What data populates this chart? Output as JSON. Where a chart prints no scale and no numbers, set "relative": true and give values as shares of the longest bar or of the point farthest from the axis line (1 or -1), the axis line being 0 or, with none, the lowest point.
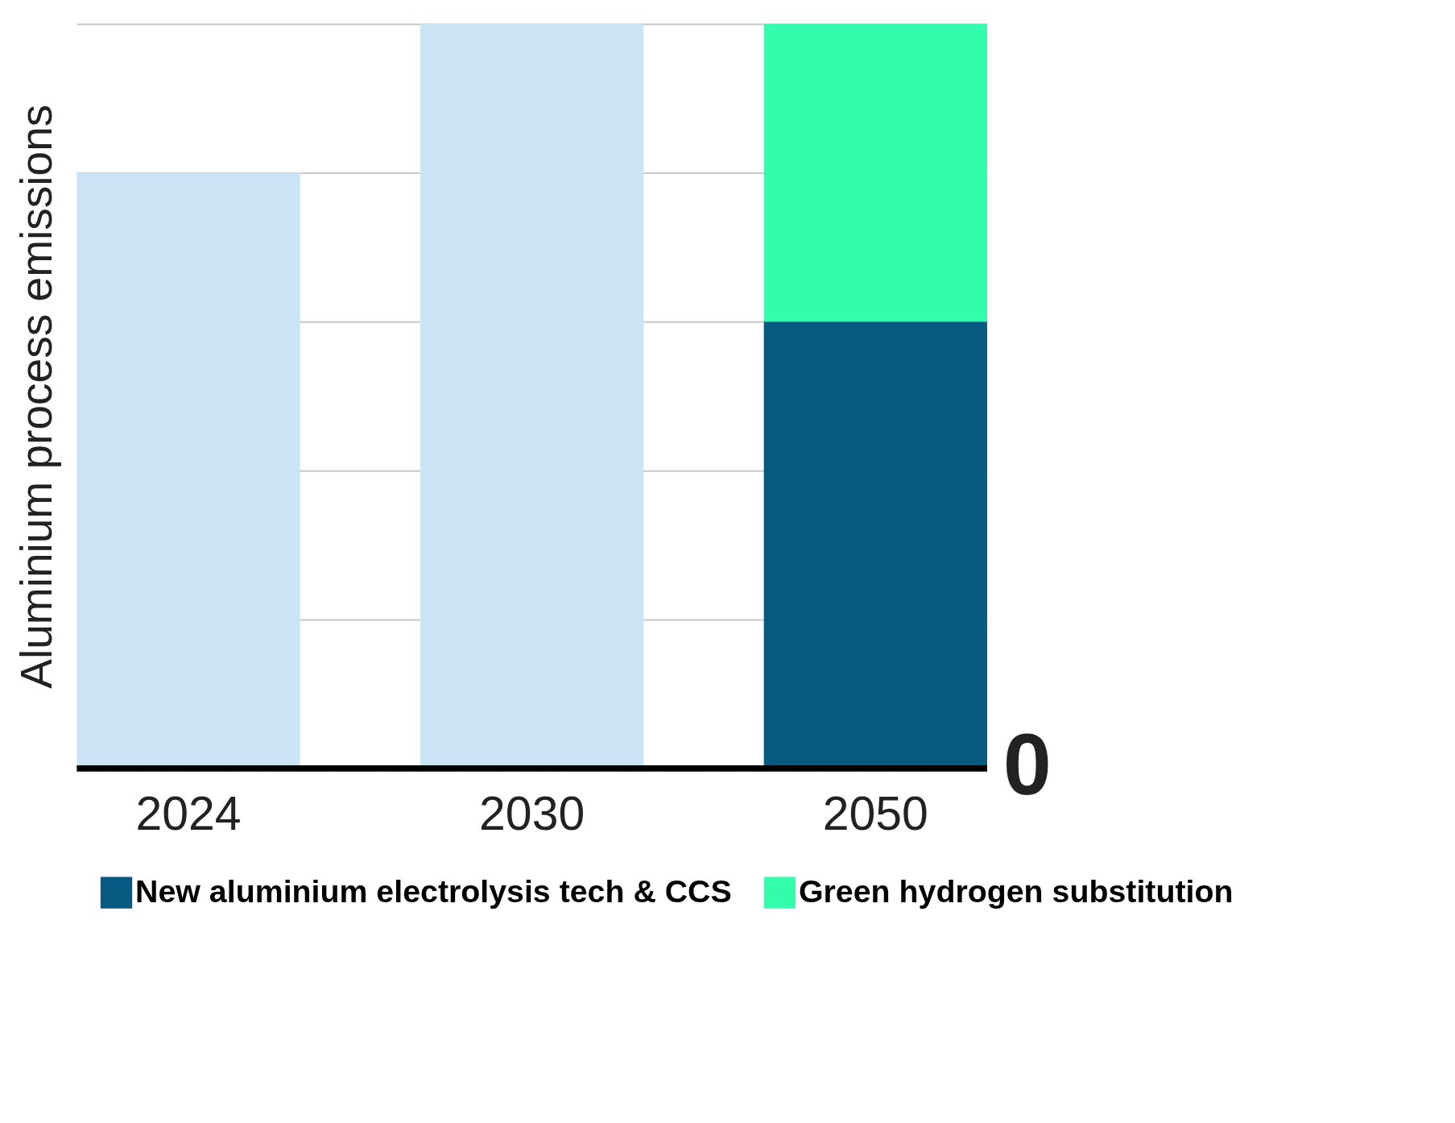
{
  "chart_data": {
    "type": "bar",
    "relative": true,
    "stacked": true,
    "ylabel": "Aluminium process emissions",
    "categories": [
      "2024",
      "2030",
      "2050"
    ],
    "series": [
      {
        "color": "#c8e4f5",
        "values": [
          0.8,
          1.0,
          null
        ]
      },
      {
        "name": "New aluminium electrolysis tech & CCS",
        "color": "#065a82",
        "values": [
          null,
          null,
          0.6
        ]
      },
      {
        "name": "Green hydrogen substitution",
        "color": "#33fcad",
        "values": [
          null,
          null,
          0.4
        ]
      }
    ],
    "ref_lines": [
      {
        "axis": "y",
        "value": 0,
        "label": "0",
        "color": "#000000"
      }
    ],
    "grid": "y",
    "legend": "bottom"
  }
}
